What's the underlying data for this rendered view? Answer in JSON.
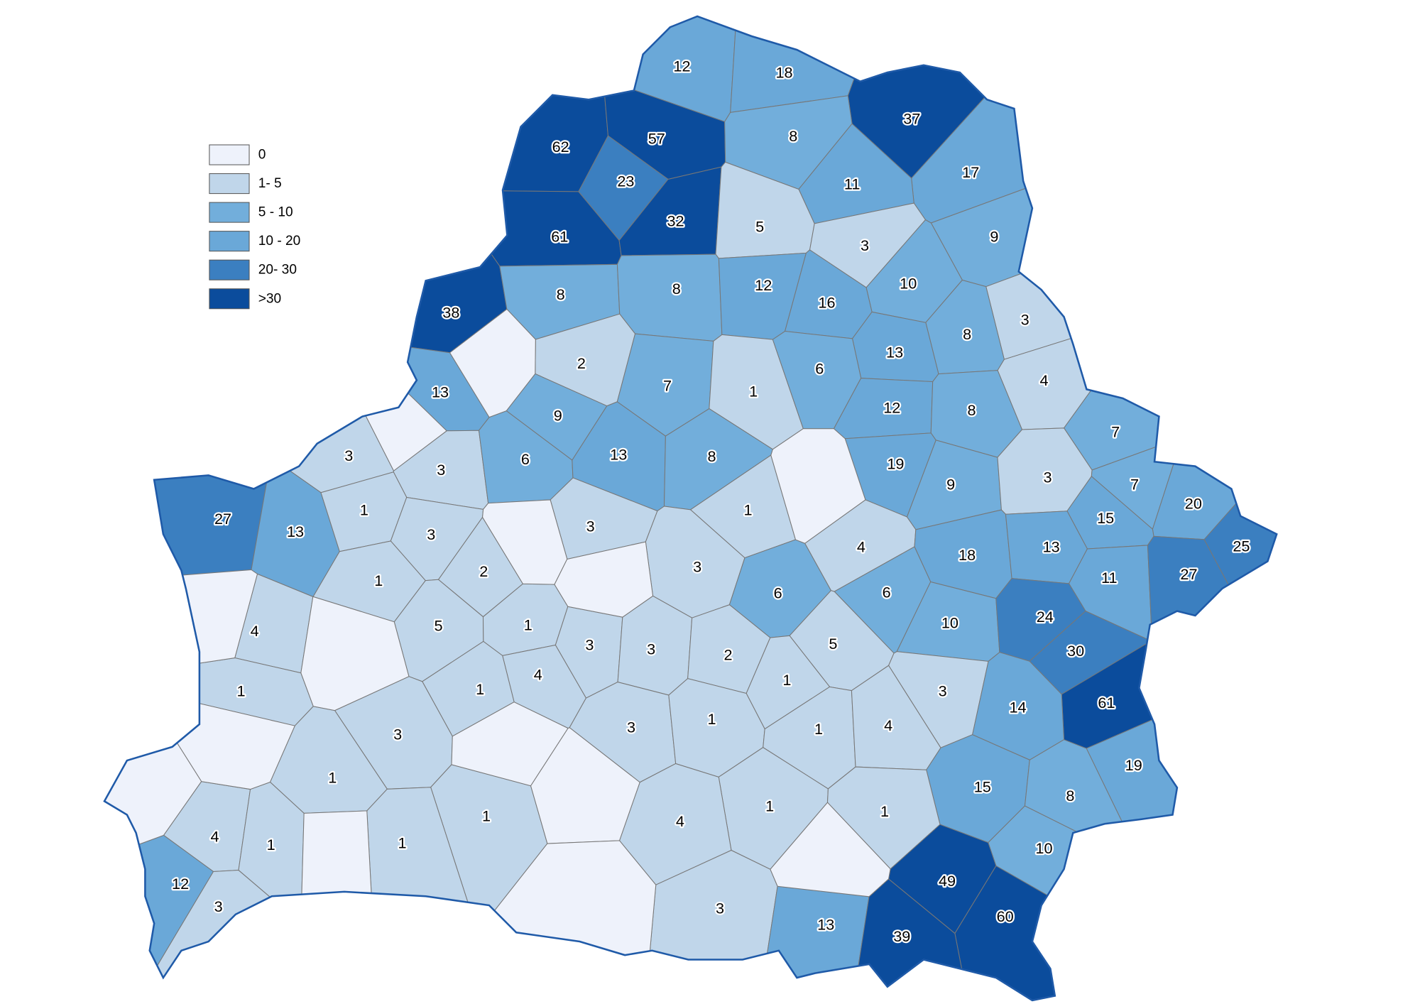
{
  "legend": [
    {
      "label": "0",
      "color": "#eef2fb"
    },
    {
      "label": "1- 5",
      "color": "#c0d6ea"
    },
    {
      "label": "5 - 10",
      "color": "#72aedb"
    },
    {
      "label": "10 - 20",
      "color": "#6aa8d8"
    },
    {
      "label": "20- 30",
      "color": "#3b7fc0"
    },
    {
      "label": ">30",
      "color": "#0b4c9c"
    }
  ],
  "regions": [
    {
      "value": 12,
      "color": "#6aa8d8"
    },
    {
      "value": 18,
      "color": "#6aa8d8"
    },
    {
      "value": 37,
      "color": "#0b4c9c"
    },
    {
      "value": 62,
      "color": "#0b4c9c"
    },
    {
      "value": 57,
      "color": "#0b4c9c"
    },
    {
      "value": 8,
      "color": "#72aedb"
    },
    {
      "value": 23,
      "color": "#3b7fc0"
    },
    {
      "value": 17,
      "color": "#6aa8d8"
    },
    {
      "value": 11,
      "color": "#6aa8d8"
    },
    {
      "value": 61,
      "color": "#0b4c9c"
    },
    {
      "value": 32,
      "color": "#0b4c9c"
    },
    {
      "value": 5,
      "color": "#c0d6ea"
    },
    {
      "value": 9,
      "color": "#72aedb"
    },
    {
      "value": 3,
      "color": "#c0d6ea"
    },
    {
      "value": 10,
      "color": "#72aedb"
    },
    {
      "value": 38,
      "color": "#0b4c9c"
    },
    {
      "value": 8,
      "color": "#72aedb"
    },
    {
      "value": 8,
      "color": "#72aedb"
    },
    {
      "value": 12,
      "color": "#6aa8d8"
    },
    {
      "value": 16,
      "color": "#6aa8d8"
    },
    {
      "value": 3,
      "color": "#c0d6ea"
    },
    {
      "value": 8,
      "color": "#72aedb"
    },
    {
      "value": 13,
      "color": "#6aa8d8"
    },
    {
      "value": 2,
      "color": "#c0d6ea"
    },
    {
      "value": 7,
      "color": "#72aedb"
    },
    {
      "value": 1,
      "color": "#c0d6ea"
    },
    {
      "value": 6,
      "color": "#72aedb"
    },
    {
      "value": 4,
      "color": "#c0d6ea"
    },
    {
      "value": 13,
      "color": "#6aa8d8"
    },
    {
      "value": 12,
      "color": "#6aa8d8"
    },
    {
      "value": 8,
      "color": "#72aedb"
    },
    {
      "value": 9,
      "color": "#72aedb"
    },
    {
      "value": 3,
      "color": "#c0d6ea"
    },
    {
      "value": 3,
      "color": "#c0d6ea"
    },
    {
      "value": 6,
      "color": "#72aedb"
    },
    {
      "value": 13,
      "color": "#6aa8d8"
    },
    {
      "value": 8,
      "color": "#72aedb"
    },
    {
      "value": 7,
      "color": "#72aedb"
    },
    {
      "value": 19,
      "color": "#6aa8d8"
    },
    {
      "value": 9,
      "color": "#72aedb"
    },
    {
      "value": 3,
      "color": "#c0d6ea"
    },
    {
      "value": 7,
      "color": "#72aedb"
    },
    {
      "value": 20,
      "color": "#6aa8d8"
    },
    {
      "value": 27,
      "color": "#3b7fc0"
    },
    {
      "value": 13,
      "color": "#6aa8d8"
    },
    {
      "value": 1,
      "color": "#c0d6ea"
    },
    {
      "value": 1,
      "color": "#c0d6ea"
    },
    {
      "value": 3,
      "color": "#c0d6ea"
    },
    {
      "value": 3,
      "color": "#c0d6ea"
    },
    {
      "value": 15,
      "color": "#6aa8d8"
    },
    {
      "value": 25,
      "color": "#3b7fc0"
    },
    {
      "value": 3,
      "color": "#c0d6ea"
    },
    {
      "value": 4,
      "color": "#c0d6ea"
    },
    {
      "value": 18,
      "color": "#6aa8d8"
    },
    {
      "value": 13,
      "color": "#6aa8d8"
    },
    {
      "value": 2,
      "color": "#c0d6ea"
    },
    {
      "value": 1,
      "color": "#c0d6ea"
    },
    {
      "value": 11,
      "color": "#6aa8d8"
    },
    {
      "value": 27,
      "color": "#3b7fc0"
    },
    {
      "value": 6,
      "color": "#72aedb"
    },
    {
      "value": 6,
      "color": "#72aedb"
    },
    {
      "value": 10,
      "color": "#72aedb"
    },
    {
      "value": 24,
      "color": "#3b7fc0"
    },
    {
      "value": 4,
      "color": "#c0d6ea"
    },
    {
      "value": 5,
      "color": "#c0d6ea"
    },
    {
      "value": 1,
      "color": "#c0d6ea"
    },
    {
      "value": 3,
      "color": "#c0d6ea"
    },
    {
      "value": 3,
      "color": "#c0d6ea"
    },
    {
      "value": 2,
      "color": "#c0d6ea"
    },
    {
      "value": 5,
      "color": "#c0d6ea"
    },
    {
      "value": 30,
      "color": "#3b7fc0"
    },
    {
      "value": 4,
      "color": "#c0d6ea"
    },
    {
      "value": 1,
      "color": "#c0d6ea"
    },
    {
      "value": 1,
      "color": "#c0d6ea"
    },
    {
      "value": 1,
      "color": "#c0d6ea"
    },
    {
      "value": 3,
      "color": "#c0d6ea"
    },
    {
      "value": 61,
      "color": "#0b4c9c"
    },
    {
      "value": 14,
      "color": "#6aa8d8"
    },
    {
      "value": 3,
      "color": "#c0d6ea"
    },
    {
      "value": 3,
      "color": "#c0d6ea"
    },
    {
      "value": 1,
      "color": "#c0d6ea"
    },
    {
      "value": 1,
      "color": "#c0d6ea"
    },
    {
      "value": 4,
      "color": "#c0d6ea"
    },
    {
      "value": 19,
      "color": "#6aa8d8"
    },
    {
      "value": 1,
      "color": "#c0d6ea"
    },
    {
      "value": 15,
      "color": "#6aa8d8"
    },
    {
      "value": 8,
      "color": "#72aedb"
    },
    {
      "value": 1,
      "color": "#c0d6ea"
    },
    {
      "value": 1,
      "color": "#c0d6ea"
    },
    {
      "value": 4,
      "color": "#c0d6ea"
    },
    {
      "value": 1,
      "color": "#c0d6ea"
    },
    {
      "value": 4,
      "color": "#c0d6ea"
    },
    {
      "value": 1,
      "color": "#c0d6ea"
    },
    {
      "value": 1,
      "color": "#c0d6ea"
    },
    {
      "value": 10,
      "color": "#72aedb"
    },
    {
      "value": 49,
      "color": "#0b4c9c"
    },
    {
      "value": 12,
      "color": "#6aa8d8"
    },
    {
      "value": 3,
      "color": "#c0d6ea"
    },
    {
      "value": 3,
      "color": "#c0d6ea"
    },
    {
      "value": 13,
      "color": "#6aa8d8"
    },
    {
      "value": 60,
      "color": "#0b4c9c"
    },
    {
      "value": 39,
      "color": "#0b4c9c"
    }
  ]
}
